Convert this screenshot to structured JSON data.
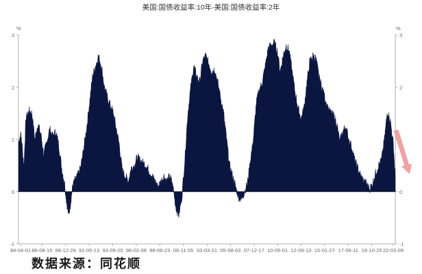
{
  "chart_data": {
    "type": "area",
    "title": "美国:国债收益率:10年-美国:国债收益率:2年",
    "y_unit_left": "%",
    "y_unit_right": "%",
    "ylim": [
      -1,
      3
    ],
    "y_ticks": [
      -1,
      0,
      1,
      2,
      3
    ],
    "x_tick_labels": [
      "84-04-01",
      "86-08-15",
      "88-12-28",
      "91-05-13",
      "93-09-25",
      "96-02-08",
      "98-06-23",
      "00-11-05",
      "03-03-21",
      "05-08-03",
      "07-12-17",
      "10-05-01",
      "12-09-13",
      "15-01-27",
      "17-06-11",
      "19-10-25",
      "22-03-09"
    ],
    "grid": false,
    "series": [
      {
        "x_start": "1984-04-01",
        "x_end": "2022-03-09",
        "x": [
          1984.25,
          1984.5,
          1984.8,
          1985.0,
          1985.3,
          1985.6,
          1985.9,
          1986.2,
          1986.5,
          1986.8,
          1987.1,
          1987.4,
          1987.7,
          1988.0,
          1988.3,
          1988.6,
          1988.9,
          1989.1,
          1989.3,
          1989.5,
          1989.7,
          1989.9,
          1990.2,
          1990.5,
          1990.8,
          1991.1,
          1991.4,
          1991.7,
          1992.0,
          1992.3,
          1992.6,
          1992.9,
          1993.2,
          1993.5,
          1993.8,
          1994.1,
          1994.4,
          1994.7,
          1995.0,
          1995.3,
          1995.6,
          1995.9,
          1996.2,
          1996.5,
          1996.8,
          1997.1,
          1997.4,
          1997.7,
          1998.0,
          1998.3,
          1998.6,
          1998.9,
          1999.2,
          1999.5,
          1999.8,
          2000.1,
          2000.4,
          2000.7,
          2001.0,
          2001.3,
          2001.6,
          2001.9,
          2002.2,
          2002.5,
          2002.8,
          2003.1,
          2003.4,
          2003.7,
          2004.0,
          2004.3,
          2004.6,
          2004.9,
          2005.2,
          2005.5,
          2005.8,
          2006.1,
          2006.4,
          2006.7,
          2007.0,
          2007.3,
          2007.6,
          2007.9,
          2008.2,
          2008.5,
          2008.8,
          2009.1,
          2009.4,
          2009.7,
          2010.0,
          2010.3,
          2010.6,
          2010.9,
          2011.2,
          2011.5,
          2011.8,
          2012.1,
          2012.4,
          2012.7,
          2013.0,
          2013.3,
          2013.6,
          2013.9,
          2014.2,
          2014.5,
          2014.8,
          2015.1,
          2015.4,
          2015.7,
          2016.0,
          2016.3,
          2016.6,
          2016.9,
          2017.2,
          2017.5,
          2017.8,
          2018.1,
          2018.4,
          2018.7,
          2019.0,
          2019.3,
          2019.6,
          2019.9,
          2020.2,
          2020.5,
          2020.8,
          2021.1,
          2021.4,
          2021.7,
          2022.0,
          2022.19
        ],
        "values": [
          0.95,
          1.1,
          0.5,
          1.4,
          1.55,
          1.5,
          1.0,
          1.3,
          1.1,
          0.7,
          0.95,
          1.2,
          1.05,
          1.15,
          0.9,
          0.45,
          0.15,
          -0.2,
          -0.45,
          -0.2,
          0.1,
          0.2,
          0.3,
          0.45,
          0.8,
          1.2,
          1.7,
          2.2,
          2.4,
          2.6,
          2.4,
          2.0,
          1.8,
          1.65,
          1.5,
          1.2,
          0.9,
          0.4,
          0.3,
          0.2,
          0.45,
          0.5,
          0.65,
          0.6,
          0.55,
          0.5,
          0.4,
          0.3,
          0.2,
          0.1,
          0.2,
          0.3,
          0.2,
          0.3,
          0.1,
          -0.3,
          -0.45,
          -0.1,
          0.6,
          1.5,
          2.0,
          2.4,
          2.2,
          2.1,
          2.5,
          2.6,
          2.45,
          2.3,
          2.35,
          2.1,
          1.8,
          1.5,
          1.0,
          0.5,
          0.3,
          0.1,
          -0.1,
          -0.15,
          0.0,
          0.15,
          0.6,
          1.0,
          1.7,
          1.95,
          2.1,
          2.4,
          2.75,
          2.8,
          2.85,
          2.7,
          2.3,
          2.6,
          2.8,
          2.7,
          2.3,
          1.9,
          1.6,
          1.4,
          1.6,
          2.1,
          2.5,
          2.6,
          2.55,
          2.2,
          2.0,
          1.8,
          1.6,
          1.5,
          1.45,
          1.3,
          0.95,
          1.15,
          1.25,
          1.0,
          0.85,
          0.6,
          0.45,
          0.3,
          0.2,
          0.15,
          0.05,
          0.15,
          0.35,
          0.5,
          0.6,
          1.0,
          1.55,
          1.35,
          0.9,
          0.25
        ]
      }
    ],
    "colors": {
      "fill": "#0b1640",
      "arrow": "#f4a0a0",
      "axis": "#9a9a9a"
    }
  },
  "source_text": "数据来源：同花顺"
}
